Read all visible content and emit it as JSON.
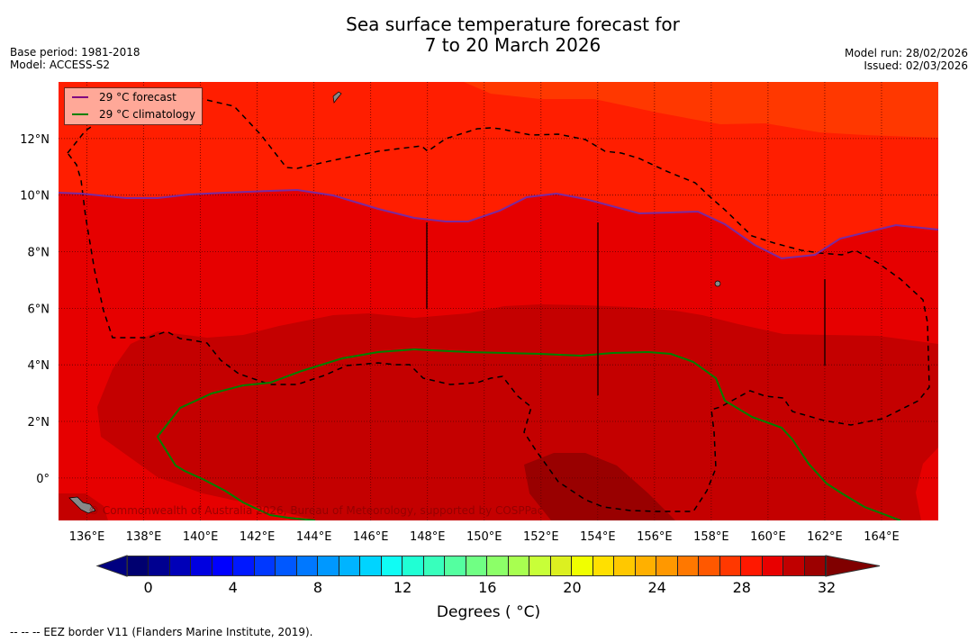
{
  "header": {
    "title_line1": "Sea surface temperature forecast for",
    "title_line2": "7 to 20 March 2026",
    "base_period": "Base period: 1981-2018",
    "model": "Model: ACCESS-S2",
    "model_run": "Model run: 28/02/2026",
    "issued": "Issued: 02/03/2026"
  },
  "legend": {
    "forecast": "29 °C  forecast",
    "climatology": "29 °C  climatology",
    "forecast_color": "#800080",
    "climatology_color": "#008000"
  },
  "map": {
    "lon_ticks": [
      "136°E",
      "138°E",
      "140°E",
      "142°E",
      "144°E",
      "146°E",
      "148°E",
      "150°E",
      "152°E",
      "154°E",
      "156°E",
      "158°E",
      "160°E",
      "162°E",
      "164°E"
    ],
    "lon_values": [
      136,
      138,
      140,
      142,
      144,
      146,
      148,
      150,
      152,
      154,
      156,
      158,
      160,
      162,
      164
    ],
    "lat_ticks": [
      "12°N",
      "10°N",
      "8°N",
      "6°N",
      "4°N",
      "2°N",
      "0°"
    ],
    "lat_values": [
      12,
      10,
      8,
      6,
      4,
      2,
      0
    ],
    "extent": {
      "lon": [
        135,
        166
      ],
      "lat": [
        -1.5,
        14
      ]
    },
    "copyright": "© Commonwealth of Australia 2026, Bureau of Meteorology, supported by COSPPac",
    "fill_colors": {
      "c27_28": "#ff3800",
      "c28_29": "#ff1e00",
      "c29_30": "#e60000",
      "c30_31": "#c40000",
      "c31_32": "#990000"
    }
  },
  "colorbar": {
    "label": "Degrees ( °C)",
    "tick_labels": [
      "0",
      "4",
      "8",
      "12",
      "16",
      "20",
      "24",
      "28",
      "32"
    ],
    "tick_values": [
      0,
      4,
      8,
      12,
      16,
      20,
      24,
      28,
      32
    ],
    "range": [
      -1,
      32
    ],
    "under_color": "#000080",
    "over_color": "#800000",
    "colors": [
      "#000070",
      "#000090",
      "#0000b8",
      "#0000e0",
      "#0000ff",
      "#0018ff",
      "#0038ff",
      "#0058ff",
      "#0078ff",
      "#0098ff",
      "#00b4ff",
      "#00d4ff",
      "#10fcf4",
      "#20ffd4",
      "#38ffbc",
      "#54ffa0",
      "#70ff84",
      "#8cff68",
      "#a8ff50",
      "#c8ff38",
      "#dcf020",
      "#f0ff00",
      "#ffe000",
      "#ffc800",
      "#ffb000",
      "#ff9800",
      "#ff7800",
      "#ff5800",
      "#ff3800",
      "#ff1800",
      "#e80000",
      "#c00000",
      "#9c0000"
    ]
  },
  "footer": {
    "eez_note": "--  --  -- EEZ border V11 (Flanders Marine Institute, 2019)."
  }
}
